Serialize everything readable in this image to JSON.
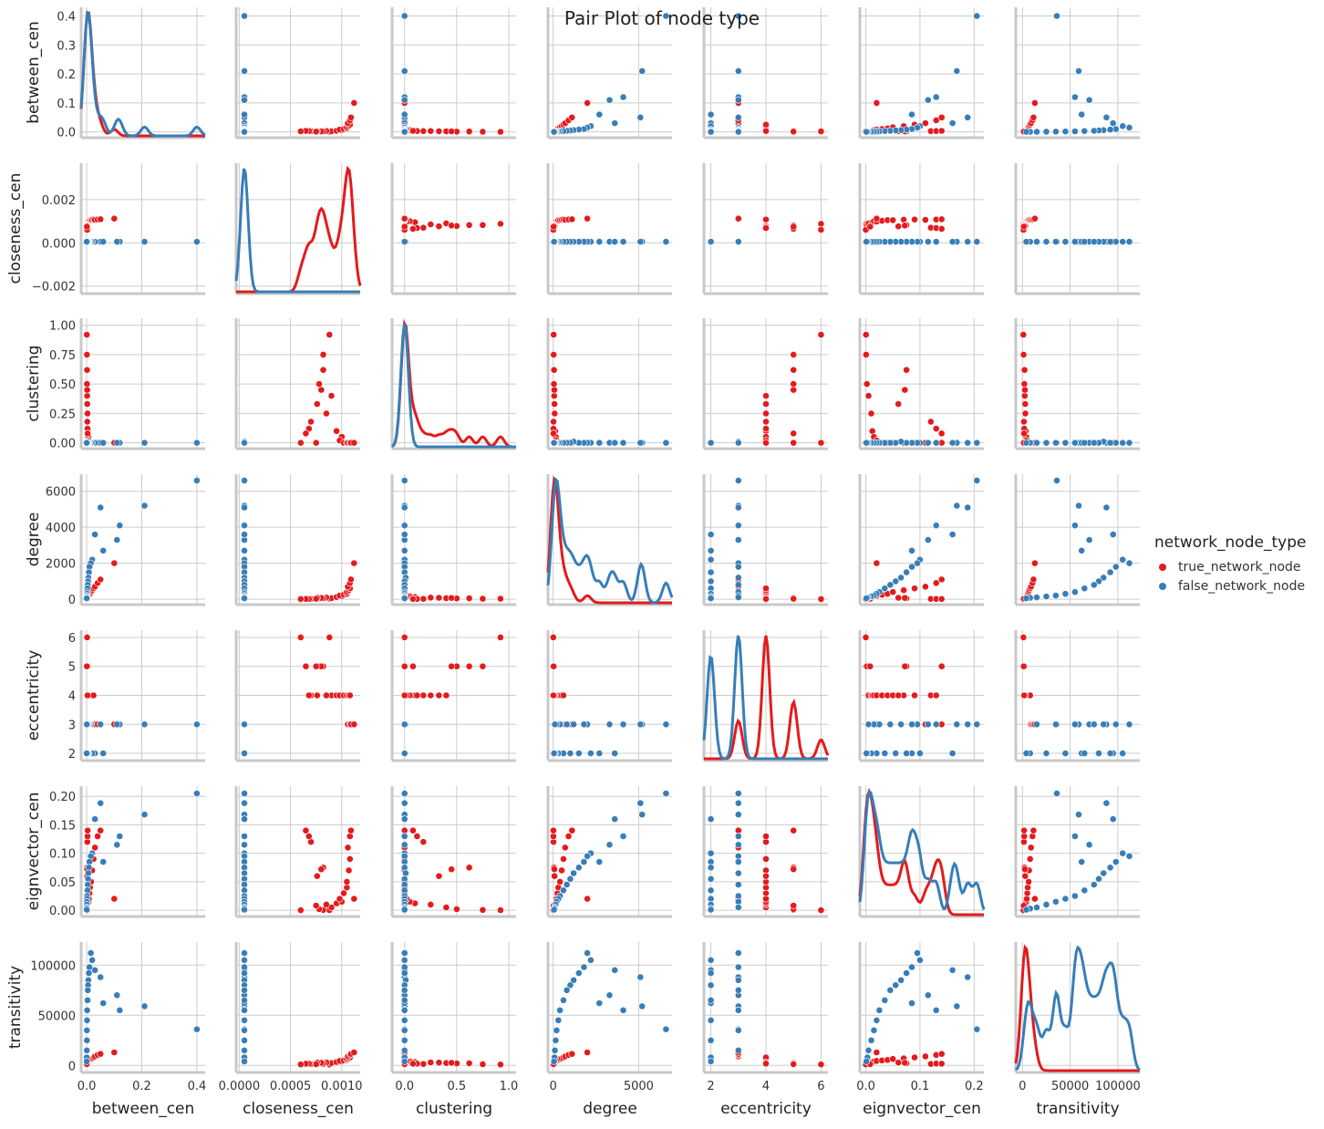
{
  "chart_data": {
    "type": "scatter",
    "title": "Pair Plot of node type",
    "variables": [
      "between_cen",
      "closeness_cen",
      "clustering",
      "degree",
      "eccentricity",
      "eignvector_cen",
      "transitivity"
    ],
    "axes": {
      "between_cen": {
        "lim": [
          -0.02,
          0.43
        ],
        "ticks": [
          0.0,
          0.1,
          0.2,
          0.3,
          0.4
        ],
        "ticklabels": [
          "0.0",
          "0.1",
          "0.2",
          "0.3",
          "0.4"
        ],
        "xticks": [
          0.0,
          0.2,
          0.4
        ],
        "xticklabels": [
          "0.0",
          "0.2",
          "0.4"
        ]
      },
      "closeness_cen": {
        "lim": [
          -0.00235,
          0.00368
        ],
        "ticks": [
          -0.002,
          0.0,
          0.002
        ],
        "ticklabels": [
          "−0.002",
          "0.000",
          "0.002"
        ],
        "xlim": [
          -3e-05,
          0.00118
        ],
        "xticks": [
          0.0,
          0.0005,
          0.001
        ],
        "xticklabels": [
          "0.0000",
          "0.0005",
          "0.0010"
        ]
      },
      "clustering": {
        "lim": [
          -0.05,
          1.06
        ],
        "ticks": [
          0.0,
          0.25,
          0.5,
          0.75,
          1.0
        ],
        "ticklabels": [
          "0.00",
          "0.25",
          "0.50",
          "0.75",
          "1.00"
        ],
        "xlim": [
          -0.12,
          1.07
        ],
        "xticks": [
          0.0,
          0.5,
          1.0
        ],
        "xticklabels": [
          "0.0",
          "0.5",
          "1.0"
        ]
      },
      "degree": {
        "lim": [
          -300,
          6950
        ],
        "ticks": [
          0,
          2000,
          4000,
          6000
        ],
        "ticklabels": [
          "0",
          "2000",
          "4000",
          "6000"
        ],
        "xticks": [
          0,
          5000
        ],
        "xticklabels": [
          "0",
          "5000"
        ]
      },
      "eccentricity": {
        "lim": [
          1.75,
          6.25
        ],
        "ticks": [
          2,
          3,
          4,
          5,
          6
        ],
        "ticklabels": [
          "2",
          "3",
          "4",
          "5",
          "6"
        ],
        "xticks": [
          2,
          4,
          6
        ],
        "xticklabels": [
          "2",
          "4",
          "6"
        ]
      },
      "eignvector_cen": {
        "lim": [
          -0.011,
          0.218
        ],
        "ticks": [
          0.0,
          0.05,
          0.1,
          0.15,
          0.2
        ],
        "ticklabels": [
          "0.00",
          "0.05",
          "0.10",
          "0.15",
          "0.20"
        ],
        "xticks": [
          0.0,
          0.1,
          0.2
        ],
        "xticklabels": [
          "0.0",
          "0.1",
          "0.2"
        ]
      },
      "transitivity": {
        "lim": [
          -7000,
          123000
        ],
        "ticks": [
          0,
          50000,
          100000
        ],
        "ticklabels": [
          "0",
          "50000",
          "100000"
        ],
        "xticks": [
          0,
          50000,
          100000
        ],
        "xticklabels": [
          "0",
          "50000",
          "100000"
        ]
      }
    },
    "series": [
      {
        "name": "true_network_node",
        "color": "#e41a1c",
        "points": [
          [
            0.0005,
            0.00088,
            0.92,
            28,
            6,
            0.0002,
            900
          ],
          [
            0.0008,
            0.00082,
            0.75,
            32,
            5,
            0.0005,
            1200
          ],
          [
            0.0012,
            0.00078,
            0.5,
            45,
            5,
            0.002,
            2000
          ],
          [
            0.002,
            0.0009,
            0.4,
            60,
            4,
            0.005,
            2400
          ],
          [
            0.003,
            0.00085,
            0.25,
            90,
            4,
            0.01,
            3000
          ],
          [
            0.004,
            0.00095,
            0.1,
            120,
            4,
            0.012,
            3500
          ],
          [
            0.006,
            0.001,
            0.05,
            160,
            4,
            0.015,
            4000
          ],
          [
            0.008,
            0.00098,
            0.02,
            200,
            4,
            0.02,
            4500
          ],
          [
            0.01,
            0.00102,
            0.0,
            250,
            4,
            0.03,
            5000
          ],
          [
            0.012,
            0.00105,
            0.0,
            300,
            4,
            0.04,
            5500
          ],
          [
            0.016,
            0.00105,
            0.0,
            400,
            4,
            0.05,
            6500
          ],
          [
            0.02,
            0.00107,
            0.0,
            500,
            4,
            0.07,
            7000
          ],
          [
            0.025,
            0.00108,
            0.0,
            600,
            4,
            0.09,
            8000
          ],
          [
            0.03,
            0.00106,
            0.0,
            700,
            3,
            0.11,
            9000
          ],
          [
            0.04,
            0.00108,
            0.0,
            900,
            3,
            0.13,
            10500
          ],
          [
            0.05,
            0.00109,
            0.0,
            1100,
            3,
            0.14,
            11500
          ],
          [
            0.1,
            0.00112,
            0.0,
            2000,
            3,
            0.02,
            13000
          ],
          [
            0.0015,
            0.00082,
            0.62,
            50,
            5,
            0.075,
            2200
          ],
          [
            0.0018,
            0.0008,
            0.45,
            70,
            5,
            0.072,
            2600
          ],
          [
            0.0022,
            0.00076,
            0.33,
            80,
            4,
            0.06,
            2800
          ],
          [
            0.0025,
            0.0007,
            0.18,
            20,
            4,
            0.12,
            1500
          ],
          [
            0.003,
            0.00068,
            0.12,
            15,
            4,
            0.13,
            1800
          ],
          [
            0.0035,
            0.00065,
            0.08,
            12,
            5,
            0.14,
            1700
          ],
          [
            0.002,
            0.0006,
            0.0,
            10,
            6,
            0.0,
            1000
          ],
          [
            0.001,
            0.00075,
            0.0,
            25,
            5,
            0.008,
            1300
          ]
        ]
      },
      {
        "name": "false_network_node",
        "color": "#377eb8",
        "points": [
          [
            0.4,
            5e-05,
            0.0,
            6600,
            3,
            0.205,
            36000
          ],
          [
            0.21,
            5e-05,
            0.0,
            5200,
            3,
            0.168,
            59000
          ],
          [
            0.12,
            5e-05,
            0.0,
            4100,
            3,
            0.13,
            55000
          ],
          [
            0.11,
            5e-05,
            0.0,
            3300,
            3,
            0.115,
            70000
          ],
          [
            0.05,
            5e-05,
            0.0,
            5100,
            3,
            0.188,
            88000
          ],
          [
            0.06,
            5e-05,
            0.0,
            2700,
            2,
            0.085,
            62000
          ],
          [
            0.03,
            5e-05,
            0.0,
            3600,
            2,
            0.16,
            95000
          ],
          [
            0.02,
            5e-05,
            0.0,
            2200,
            2,
            0.1,
            105000
          ],
          [
            0.015,
            5e-05,
            0.0,
            2000,
            3,
            0.095,
            112000
          ],
          [
            0.01,
            5e-05,
            0.0,
            1800,
            3,
            0.085,
            98000
          ],
          [
            0.008,
            5e-05,
            0.0,
            1500,
            2,
            0.075,
            92000
          ],
          [
            0.006,
            5e-05,
            0.01,
            1200,
            3,
            0.065,
            85000
          ],
          [
            0.005,
            5e-05,
            0.0,
            1000,
            2,
            0.055,
            80000
          ],
          [
            0.004,
            5e-05,
            0.0,
            800,
            3,
            0.045,
            75000
          ],
          [
            0.003,
            5e-05,
            0.0,
            600,
            2,
            0.035,
            65000
          ],
          [
            0.002,
            5e-05,
            0.0,
            400,
            3,
            0.025,
            55000
          ],
          [
            0.0015,
            5e-05,
            0.0,
            300,
            2,
            0.02,
            45000
          ],
          [
            0.001,
            5e-05,
            0.0,
            200,
            3,
            0.015,
            35000
          ],
          [
            0.0008,
            5e-05,
            0.0,
            150,
            2,
            0.01,
            25000
          ],
          [
            0.0005,
            5e-05,
            0.0,
            100,
            3,
            0.005,
            15000
          ],
          [
            0.0003,
            5e-05,
            0.0,
            80,
            2,
            0.003,
            8000
          ],
          [
            0.0002,
            5e-05,
            0.0,
            50,
            2,
            0.001,
            4000
          ]
        ]
      }
    ],
    "legend": {
      "title": "network_node_type",
      "placement": "right",
      "entries": [
        "true_network_node",
        "false_network_node"
      ]
    },
    "grid": true
  }
}
